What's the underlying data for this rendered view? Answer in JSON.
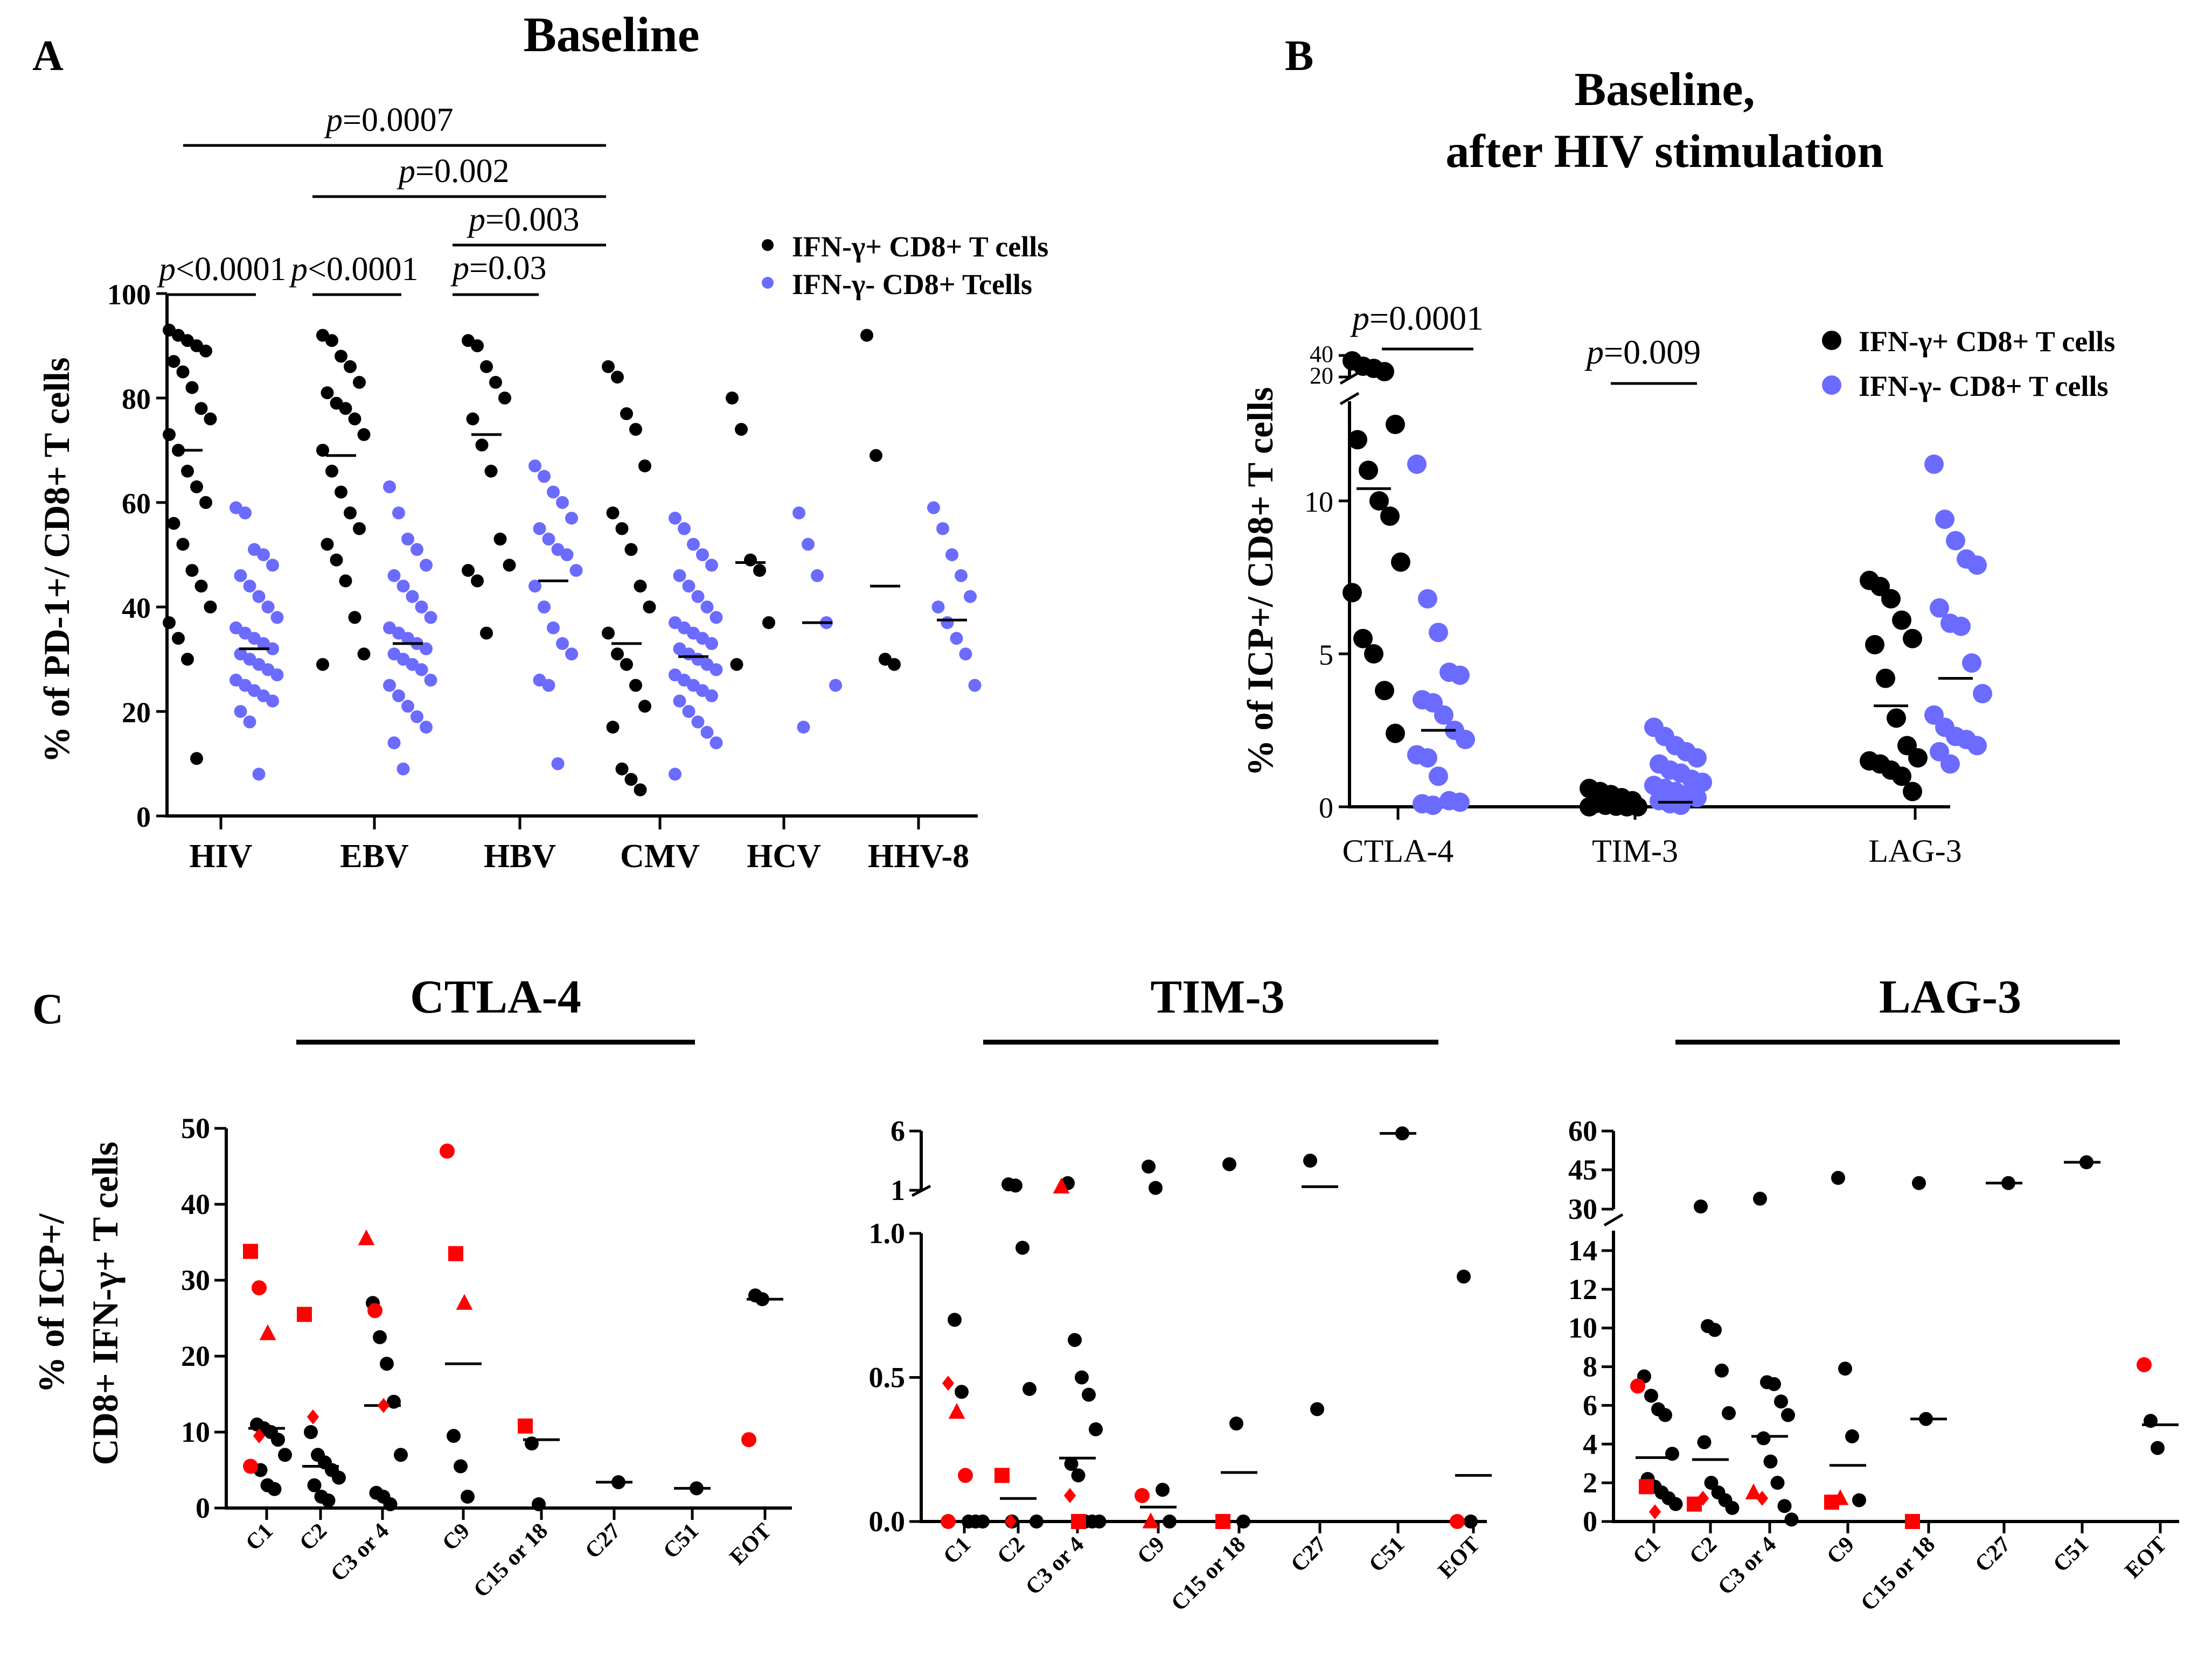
{
  "colors": {
    "black": "#000000",
    "blue": "#6b6bff",
    "red": "#ff0000"
  },
  "chart_data": [
    {
      "panel": "A",
      "type": "scatter",
      "title": "Baseline",
      "ylabel": "% of PD-1+/ CD8+ T cells",
      "xlabel": "",
      "ylim": [
        0,
        100
      ],
      "yticks": [
        "0",
        "20",
        "40",
        "60",
        "80",
        "100"
      ],
      "categories": [
        "HIV",
        "EBV",
        "HBV",
        "CMV",
        "HCV",
        "HHV-8"
      ],
      "legend": [
        "IFN-γ+ CD8+ T cells",
        "IFN-γ- CD8+ Tcells"
      ],
      "series": [
        {
          "name": "IFN-γ+ CD8+ T cells",
          "color": "black",
          "medians": [
            70,
            69,
            73,
            33,
            48.5,
            44
          ],
          "values": [
            [
              93,
              92,
              91,
              90,
              89,
              87,
              85,
              82,
              78,
              76,
              73,
              70,
              66,
              63,
              60,
              56,
              52,
              47,
              44,
              40,
              37,
              34,
              30,
              11
            ],
            [
              92,
              91,
              88,
              86,
              83,
              81,
              79,
              78,
              76,
              73,
              70,
              66,
              62,
              58,
              55,
              52,
              49,
              45,
              38,
              31,
              29
            ],
            [
              91,
              90,
              86,
              83,
              80,
              76,
              71,
              66,
              53,
              48,
              47,
              45,
              35
            ],
            [
              86,
              84,
              77,
              74,
              67,
              58,
              55,
              51,
              44,
              40,
              35,
              31,
              29,
              25,
              21,
              17,
              9,
              7,
              5
            ],
            [
              80,
              74,
              49,
              47,
              37,
              29
            ],
            [
              92,
              69,
              30,
              29
            ]
          ]
        },
        {
          "name": "IFN-γ- CD8+ Tcells",
          "color": "blue",
          "medians": [
            32,
            33,
            45,
            30.5,
            37,
            37.5
          ],
          "values": [
            [
              59,
              58,
              51,
              50,
              48,
              46,
              44,
              42,
              40,
              38,
              36,
              35,
              34,
              33,
              32,
              31,
              30,
              29,
              28,
              27,
              26,
              25,
              24,
              23,
              22,
              20,
              18,
              8
            ],
            [
              63,
              58,
              53,
              51,
              48,
              46,
              44,
              42,
              40,
              38,
              36,
              35,
              34,
              33,
              32,
              31,
              30,
              29,
              28,
              26,
              25,
              23,
              21,
              19,
              17,
              14,
              9
            ],
            [
              67,
              65,
              62,
              60,
              57,
              55,
              53,
              51,
              50,
              47,
              44,
              40,
              36,
              33,
              31,
              26,
              25,
              10
            ],
            [
              57,
              55,
              52,
              50,
              48,
              46,
              44,
              42,
              40,
              38,
              37,
              36,
              35,
              34,
              33,
              32,
              31,
              30,
              29,
              28,
              27,
              26,
              25,
              24,
              23,
              22,
              20,
              18,
              16,
              14,
              8
            ],
            [
              58,
              52,
              46,
              37,
              25,
              17
            ],
            [
              59,
              55,
              50,
              46,
              42,
              40,
              37,
              34,
              31,
              25
            ]
          ]
        }
      ],
      "annotations": [
        "p<0.0001",
        "p<0.0001",
        "p=0.03",
        "p=0.003",
        "p=0.002",
        "p=0.0007"
      ]
    },
    {
      "panel": "B",
      "type": "scatter",
      "title": "Baseline,",
      "subtitle": "after HIV stimulation",
      "ylabel": "% of ICP+/ CD8+ T cells",
      "xlabel": "",
      "ylim": [
        0,
        12
      ],
      "y_break": {
        "lower_max": 12.3,
        "upper_range": [
          20,
          40
        ]
      },
      "yticks": [
        "0",
        "5",
        "10",
        "20",
        "40"
      ],
      "categories": [
        "CTLA-4",
        "TIM-3",
        "LAG-3"
      ],
      "legend": [
        "IFN-γ+ CD8+ T cells",
        "IFN-γ- CD8+ T cells"
      ],
      "series": [
        {
          "name": "IFN-γ+ CD8+ T cells",
          "color": "black",
          "medians": [
            10.4,
            0.05,
            3.3
          ],
          "values": [
            [
              35,
              30,
              28,
              25,
              12.5,
              12,
              11,
              10,
              9.5,
              8,
              7,
              5.5,
              5,
              3.8,
              2.4
            ],
            [
              0.6,
              0.5,
              0.4,
              0.3,
              0.2,
              0.1,
              0.05,
              0.02,
              0,
              0,
              0
            ],
            [
              7.4,
              7.2,
              6.8,
              6.1,
              5.5,
              5.3,
              4.2,
              2.9,
              2.0,
              1.6,
              1.5,
              1.4,
              1.2,
              1.0,
              0.5
            ]
          ]
        },
        {
          "name": "IFN-γ- CD8+ T cells",
          "color": "blue",
          "medians": [
            2.5,
            0.15,
            4.2
          ],
          "values": [
            [
              11.2,
              6.8,
              5.7,
              4.4,
              4.3,
              3.5,
              3.4,
              3.0,
              2.5,
              2.2,
              1.7,
              1.6,
              1.0,
              0.2,
              0.15,
              0.1,
              0.05
            ],
            [
              2.6,
              2.3,
              2.0,
              1.8,
              1.6,
              1.4,
              1.2,
              1.1,
              0.9,
              0.8,
              0.7,
              0.6,
              0.5,
              0.4,
              0.3,
              0.2,
              0.1,
              0.05
            ],
            [
              11.2,
              9.4,
              8.7,
              8.1,
              7.9,
              6.5,
              6.0,
              5.9,
              4.7,
              3.7,
              3.0,
              2.6,
              2.3,
              2.2,
              2.0,
              1.8,
              1.4
            ]
          ]
        }
      ],
      "annotations": [
        "p=0.0001",
        "p=0.009"
      ]
    },
    {
      "panel": "C1",
      "type": "scatter",
      "title": "CTLA-4",
      "ylabel_line1": "% of ICP+/",
      "ylabel_line2": "CD8+ IFN-γ+ T cells",
      "ylim": [
        0,
        50
      ],
      "yticks": [
        "0",
        "10",
        "20",
        "30",
        "40",
        "50"
      ],
      "categories": [
        "C1",
        "C2",
        "C3 or 4",
        "C9",
        "C15 or 18",
        "C27",
        "C51",
        "EOT"
      ],
      "medians": [
        10.5,
        5.5,
        13.5,
        19,
        9,
        3.4,
        2.6,
        27.5
      ],
      "black": [
        [
          11,
          10.5,
          10,
          9,
          7,
          5,
          3,
          2.5
        ],
        [
          10,
          7,
          6,
          5,
          4,
          3,
          1.5,
          1
        ],
        [
          27,
          22.5,
          19,
          14,
          7,
          2,
          1.5,
          0.5
        ],
        [
          9.5,
          5.5,
          1.5
        ],
        [
          8.5,
          0.5
        ],
        [
          3.4
        ],
        [
          2.6
        ],
        [
          28,
          27.5
        ]
      ],
      "red": [
        [
          {
            "s": "square",
            "v": 33.8
          },
          {
            "s": "circle",
            "v": 29
          },
          {
            "s": "triangle",
            "v": 23
          },
          {
            "s": "circle",
            "v": 5.5
          },
          {
            "s": "diamond",
            "v": 9.5
          }
        ],
        [
          {
            "s": "square",
            "v": 25.5
          },
          {
            "s": "diamond",
            "v": 12
          }
        ],
        [
          {
            "s": "triangle",
            "v": 35.5
          },
          {
            "s": "circle",
            "v": 26
          },
          {
            "s": "diamond",
            "v": 13.5
          }
        ],
        [
          {
            "s": "circle",
            "v": 47
          },
          {
            "s": "square",
            "v": 33.5
          },
          {
            "s": "triangle",
            "v": 27
          }
        ],
        [
          {
            "s": "square",
            "v": 10.8
          }
        ],
        [],
        [],
        [
          {
            "s": "circle",
            "v": 9
          }
        ]
      ]
    },
    {
      "panel": "C2",
      "type": "scatter",
      "title": "TIM-3",
      "ylim": [
        0,
        1.0
      ],
      "y_break": {
        "upper_ticks": [
          1,
          6
        ]
      },
      "yticks": [
        "0.0",
        "0.5",
        "1.0",
        "1",
        "6"
      ],
      "categories": [
        "C1",
        "C2",
        "C3 or 4",
        "C9",
        "C15 or 18",
        "C27",
        "C51",
        "EOT"
      ],
      "medians": [
        0,
        0.08,
        0.22,
        0.05,
        0.17,
        1.3,
        5.8,
        0.16
      ],
      "black": [
        [
          0.7,
          0.45,
          0,
          0,
          0
        ],
        [
          1.5,
          1.4,
          0.95,
          0.46,
          0,
          0
        ],
        [
          1.6,
          0.63,
          0.5,
          0.44,
          0.32,
          0.2,
          0.16,
          0,
          0,
          0
        ],
        [
          3,
          1.2,
          0.11,
          0
        ],
        [
          3.2,
          0.34,
          0
        ],
        [
          3.5,
          0.39
        ],
        [
          5.8
        ],
        [
          0.85,
          0
        ]
      ],
      "red": [
        [
          {
            "s": "diamond",
            "v": 0.48
          },
          {
            "s": "triangle",
            "v": 0.38
          },
          {
            "s": "circle",
            "v": 0.16
          },
          {
            "s": "circle",
            "v": 0
          }
        ],
        [
          {
            "s": "square",
            "v": 0.16
          },
          {
            "s": "diamond",
            "v": 0
          }
        ],
        [
          {
            "s": "triangle",
            "v": 1.3
          },
          {
            "s": "diamond",
            "v": 0.09
          },
          {
            "s": "square",
            "v": 0
          }
        ],
        [
          {
            "s": "circle",
            "v": 0.09
          },
          {
            "s": "triangle",
            "v": 0
          }
        ],
        [
          {
            "s": "square",
            "v": 0
          }
        ],
        [],
        [],
        [
          {
            "s": "circle",
            "v": 0
          }
        ]
      ]
    },
    {
      "panel": "C3",
      "type": "scatter",
      "title": "LAG-3",
      "ylim": [
        0,
        14
      ],
      "y_break": {
        "upper_ticks": [
          30,
          45,
          60
        ]
      },
      "yticks": [
        "0",
        "2",
        "4",
        "6",
        "8",
        "10",
        "12",
        "14",
        "30",
        "45",
        "60"
      ],
      "categories": [
        "C1",
        "C2",
        "C3 or 4",
        "C9",
        "C15 or 18",
        "C27",
        "C51",
        "EOT"
      ],
      "medians": [
        3.3,
        3.2,
        4.4,
        2.9,
        5.3,
        40,
        48,
        5
      ],
      "black": [
        [
          7.5,
          6.5,
          5.8,
          5.5,
          3.5,
          2.2,
          1.8,
          1.5,
          1.2,
          0.9
        ],
        [
          31,
          10.1,
          9.9,
          7.8,
          5.6,
          4.1,
          2.0,
          1.5,
          1.1,
          0.7
        ],
        [
          34,
          7.2,
          7.1,
          6.2,
          5.5,
          4.3,
          3.1,
          2.0,
          0.8,
          0.1
        ],
        [
          42,
          7.9,
          4.4,
          1.1
        ],
        [
          40,
          5.3
        ],
        [
          40
        ],
        [
          48
        ],
        [
          5.2,
          3.8
        ]
      ],
      "red": [
        [
          {
            "s": "circle",
            "v": 7.0
          },
          {
            "s": "square",
            "v": 1.8
          },
          {
            "s": "diamond",
            "v": 0.5
          }
        ],
        [
          {
            "s": "square",
            "v": 0.9
          },
          {
            "s": "diamond",
            "v": 1.2
          }
        ],
        [
          {
            "s": "triangle",
            "v": 1.5
          },
          {
            "s": "diamond",
            "v": 1.2
          }
        ],
        [
          {
            "s": "square",
            "v": 1.0
          },
          {
            "s": "triangle",
            "v": 1.2
          }
        ],
        [
          {
            "s": "square",
            "v": 0
          }
        ],
        [],
        [],
        [
          {
            "s": "circle",
            "v": 8.1
          }
        ]
      ]
    }
  ],
  "panel_labels": {
    "a": "A",
    "b": "B",
    "c": "C"
  }
}
